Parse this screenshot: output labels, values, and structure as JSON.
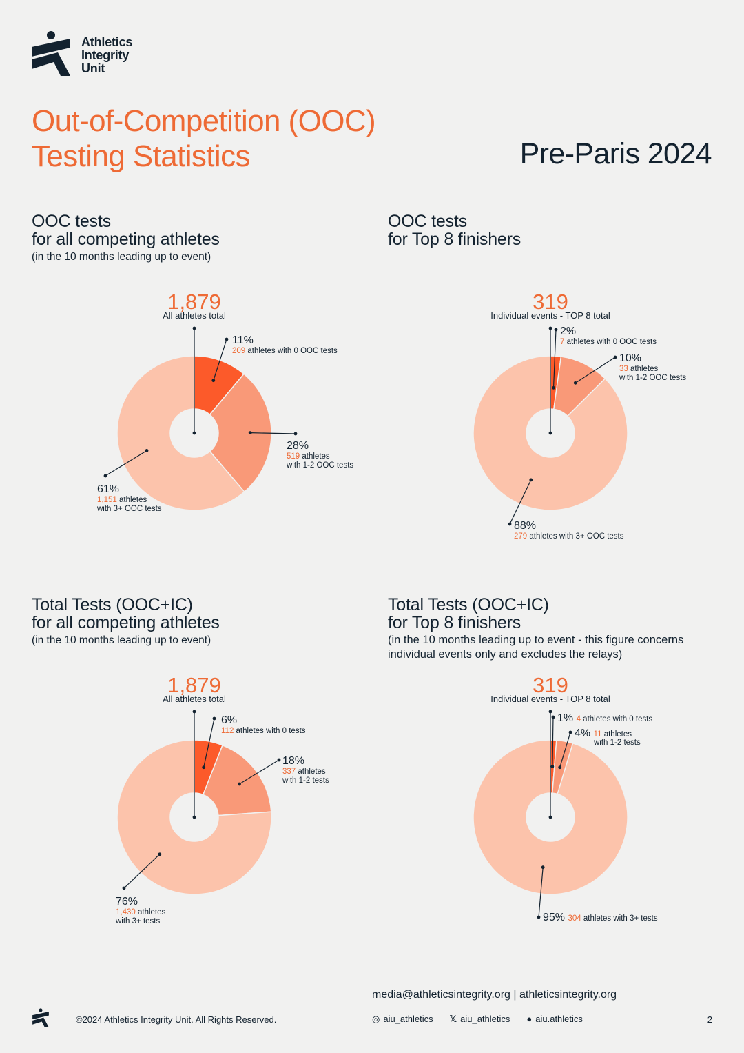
{
  "brand": {
    "line1": "Athletics",
    "line2": "Integrity",
    "line3": "Unit"
  },
  "title": {
    "line1": "Out-of-Competition (OOC)",
    "line2": "Testing Statistics",
    "event": "Pre-Paris 2024"
  },
  "colors": {
    "accent": "#ee6a35",
    "dark": "#13222f",
    "seg0": "#fc5a2a",
    "seg1": "#f99978",
    "seg2": "#fcc3ab"
  },
  "chart_data": [
    {
      "type": "pie",
      "heading": [
        "OOC tests",
        "for all competing athletes"
      ],
      "note": "(in the 10 months leading up to event)",
      "total": "1,879",
      "total_label": "All athletes total",
      "segments": [
        {
          "pct": "11%",
          "value": 209,
          "count": "209",
          "label": "athletes with 0 OOC tests"
        },
        {
          "pct": "28%",
          "value": 519,
          "count": "519",
          "label": "athletes",
          "label2": "with 1-2 OOC tests"
        },
        {
          "pct": "61%",
          "value": 1151,
          "count": "1,151",
          "label": "athletes",
          "label2": "with 3+ OOC tests"
        }
      ]
    },
    {
      "type": "pie",
      "heading": [
        "OOC tests",
        "for Top 8 finishers"
      ],
      "note": "",
      "total": "319",
      "total_label": "Individual events - TOP 8 total",
      "segments": [
        {
          "pct": "2%",
          "value": 7,
          "count": "7",
          "label": "athletes with 0 OOC tests"
        },
        {
          "pct": "10%",
          "value": 33,
          "count": "33",
          "label": "athletes",
          "label2": "with 1-2 OOC tests"
        },
        {
          "pct": "88%",
          "value": 279,
          "count": "279",
          "label": "athletes with 3+ OOC tests"
        }
      ]
    },
    {
      "type": "pie",
      "heading": [
        "Total Tests (OOC+IC)",
        "for all competing athletes"
      ],
      "note": "(in the 10 months leading up to event)",
      "total": "1,879",
      "total_label": "All athletes total",
      "segments": [
        {
          "pct": "6%",
          "value": 112,
          "count": "112",
          "label": "athletes with 0 tests"
        },
        {
          "pct": "18%",
          "value": 337,
          "count": "337",
          "label": "athletes",
          "label2": "with 1-2 tests"
        },
        {
          "pct": "76%",
          "value": 1430,
          "count": "1,430",
          "label": "athletes",
          "label2": "with 3+ tests"
        }
      ]
    },
    {
      "type": "pie",
      "heading": [
        "Total Tests (OOC+IC)",
        "for Top 8 finishers"
      ],
      "note": "(in the 10 months leading up to event - this figure concerns individual events only and excludes the relays)",
      "total": "319",
      "total_label": "Individual events - TOP 8 total",
      "segments": [
        {
          "pct": "1%",
          "value": 4,
          "count": "4",
          "label": "athletes with 0 tests"
        },
        {
          "pct": "4%",
          "value": 11,
          "count": "11",
          "label": "athletes",
          "label2": "with 1-2 tests"
        },
        {
          "pct": "95%",
          "value": 304,
          "count": "304",
          "label": "athletes with 3+ tests"
        }
      ]
    }
  ],
  "footer": {
    "contact": "media@athleticsintegrity.org | athleticsintegrity.org",
    "copyright": "©2024 Athletics Integrity Unit. All Rights Reserved.",
    "instagram": "aiu_athletics",
    "x": "aiu_athletics",
    "facebook": "aiu.athletics",
    "page": "2"
  }
}
